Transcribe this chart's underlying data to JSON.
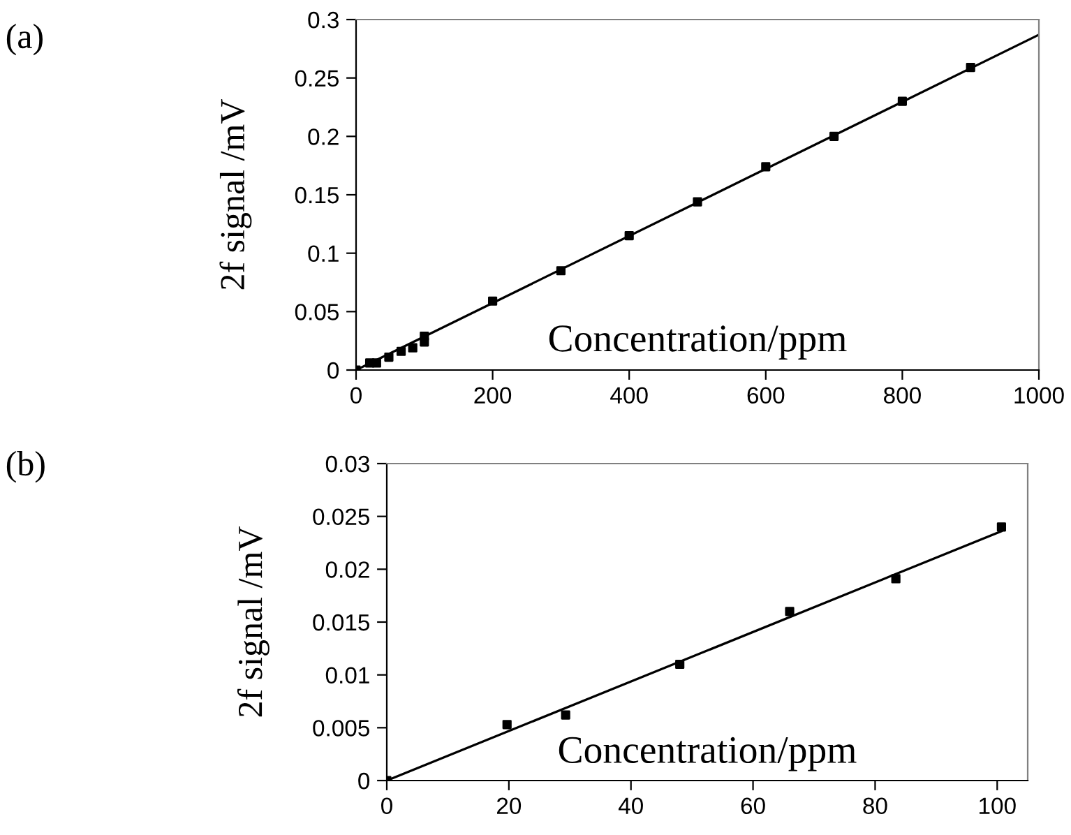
{
  "chart_data": [
    {
      "type": "scatter",
      "annotations": [
        "(a)"
      ],
      "xlabel": "Concentration/ppm",
      "ylabel": "2f signal /mV",
      "xlim": [
        0,
        1000
      ],
      "xticks": [
        0,
        200,
        400,
        600,
        800,
        1000
      ],
      "ylim": [
        0,
        0.3
      ],
      "yticks": [
        0,
        0.05,
        0.1,
        0.15,
        0.2,
        0.25,
        0.3
      ],
      "grid": false,
      "legend": false,
      "series": [
        {
          "marker": "square",
          "color": "#000000",
          "x": [
            0,
            20,
            30,
            48,
            66,
            83,
            100,
            100,
            200,
            300,
            400,
            500,
            600,
            700,
            800,
            900
          ],
          "values": [
            0,
            0.006,
            0.006,
            0.011,
            0.016,
            0.019,
            0.024,
            0.029,
            0.059,
            0.085,
            0.115,
            0.144,
            0.174,
            0.2,
            0.23,
            0.259
          ]
        },
        {
          "type": "line",
          "marker": "none",
          "color": "#000000",
          "x": [
            0,
            1000
          ],
          "values": [
            0,
            0.287
          ]
        }
      ]
    },
    {
      "type": "scatter",
      "annotations": [
        "(b)"
      ],
      "xlabel": "Concentration/ppm",
      "ylabel": "2f signal /mV",
      "xlim": [
        0,
        105
      ],
      "xticks": [
        0,
        20,
        40,
        60,
        80,
        100
      ],
      "ylim": [
        0,
        0.03
      ],
      "yticks": [
        0,
        0.005,
        0.01,
        0.015,
        0.02,
        0.025,
        0.03
      ],
      "grid": false,
      "legend": false,
      "series": [
        {
          "marker": "square",
          "color": "#000000",
          "x": [
            0,
            19.7,
            29.3,
            48,
            66,
            83.4,
            100.7
          ],
          "values": [
            0,
            0.0053,
            0.0062,
            0.011,
            0.016,
            0.0191,
            0.024
          ]
        },
        {
          "type": "line",
          "marker": "none",
          "color": "#000000",
          "x": [
            0,
            100.7
          ],
          "values": [
            0,
            0.0236
          ]
        }
      ]
    }
  ]
}
